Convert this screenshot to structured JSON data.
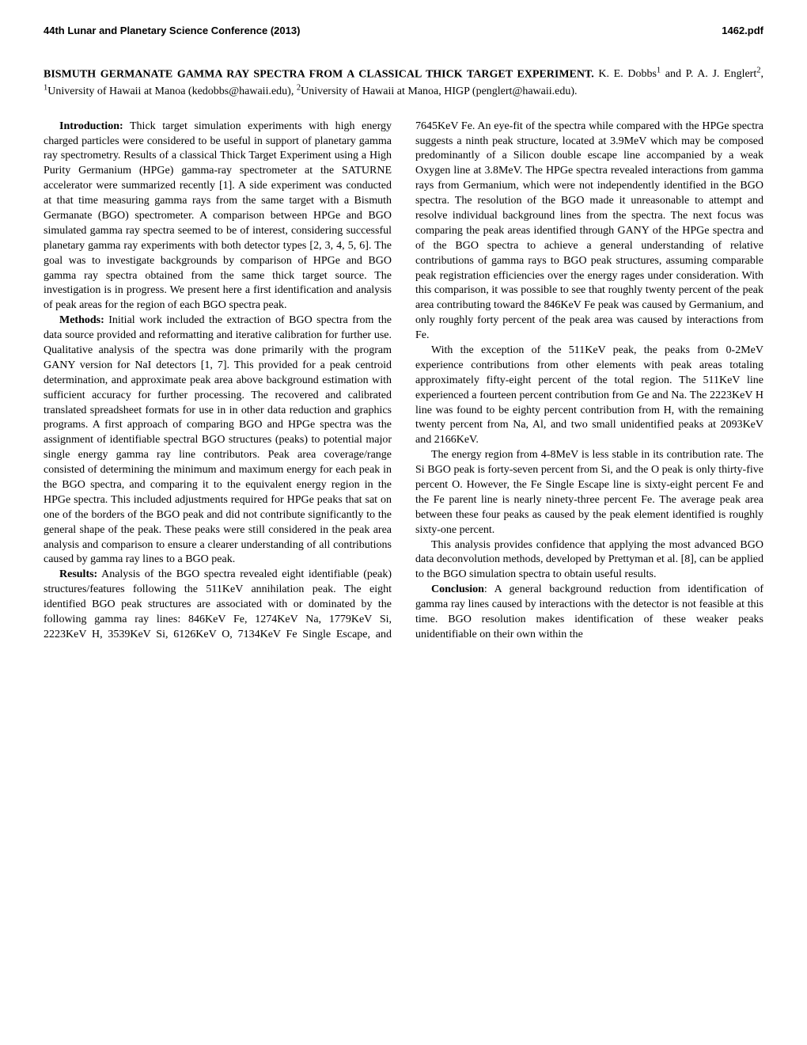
{
  "header": {
    "left": "44th Lunar and Planetary Science Conference (2013)",
    "right": "1462.pdf"
  },
  "title": {
    "main": "BISMUTH GERMANATE GAMMA RAY SPECTRA FROM A CLASSICAL THICK TARGET EXPERIMENT.",
    "authors_html": "  K. E. Dobbs<sup>1</sup> and P. A. J. Englert<sup>2</sup>, <sup>1</sup>University of Hawaii at Manoa (kedobbs@hawaii.edu), <sup>2</sup>University of Hawaii at Manoa, HIGP (penglert@hawaii.edu)."
  },
  "sections": {
    "intro_head": "Introduction:",
    "intro_body": "  Thick target simulation experiments with high energy charged particles were considered to be useful in support of planetary gamma ray spectrometry. Results of a classical Thick Target Experiment using a High Purity Germanium (HPGe) gamma-ray spectrometer at the SATURNE accelerator were summarized recently [1].  A side experiment was conducted at that time measuring gamma rays from the same target with a Bismuth Germanate (BGO) spectrometer.  A comparison between HPGe and BGO simulated gamma ray spectra seemed to be of interest, considering successful planetary gamma ray experiments with both detector types [2, 3, 4, 5, 6]. The goal was to investigate backgrounds by comparison of HPGe and BGO gamma ray spectra obtained from the same thick target source. The investigation is in progress. We present here a first identification and analysis of peak areas for the region of each BGO spectra peak.",
    "methods_head": "Methods:",
    "methods_body": "  Initial work included the extraction of BGO spectra from the data source provided and reformatting and iterative calibration for further use. Qualitative analysis of the spectra was done primarily with the program GANY version for NaI detectors [1, 7].  This provided for a peak centroid determination, and approximate peak area above background estimation with sufficient accuracy for further processing. The recovered and calibrated translated spreadsheet formats for use in in other data reduction and graphics programs. A first approach of comparing BGO and HPGe spectra was the assignment of identifiable spectral BGO structures (peaks) to potential major single energy gamma ray line contributors. Peak area coverage/range consisted of determining the minimum and maximum energy for each peak in the BGO spectra, and comparing it to the equivalent energy region in the HPGe spectra.  This included adjustments required for HPGe peaks that sat on one of the borders of the BGO peak and did not contribute significantly to the general shape of the peak.  These peaks were still considered in the peak area analysis and comparison to ensure a clearer understanding of all contributions caused by gamma ray lines to a BGO peak.",
    "results_head": "Results:",
    "results_body": "  Analysis of the BGO spectra revealed eight identifiable (peak) structures/features following the 511KeV annihilation peak. The eight identified BGO peak structures are associated with or dominated by the following gamma ray lines: 846KeV Fe, 1274KeV Na, 1779KeV Si, 2223KeV H, 3539KeV Si, 6126KeV O, 7134KeV Fe Single Escape, and 7645KeV Fe. An eye-fit of the spectra while compared with the HPGe spectra suggests a ninth peak structure, located at 3.9MeV which may be composed predominantly of a Silicon double escape line accompanied by a weak Oxygen line at 3.8MeV. The HPGe spectra revealed interactions from gamma rays from Germanium, which were not independently identified in the BGO spectra.  The resolution of the BGO made it unreasonable to attempt and resolve individual background lines from the spectra.  The next focus was comparing the peak areas identified through GANY of the HPGe spectra and of the BGO spectra to achieve a general understanding of relative contributions of gamma rays to BGO peak structures, assuming comparable peak registration efficiencies over the energy rages under consideration. With this comparison, it was possible to see that roughly twenty percent of the peak area contributing toward the 846KeV Fe peak was caused by Germanium, and only roughly forty percent of the peak area was caused by interactions from Fe.",
    "p2": "With the exception of the 511KeV peak, the peaks from 0-2MeV experience contributions from other elements with peak areas totaling approximately fifty-eight percent of the total region.  The 511KeV line experienced a fourteen percent contribution from Ge and Na.  The 2223KeV H line was found to be eighty percent contribution from H, with the remaining twenty percent from Na, Al, and two small unidentified peaks at 2093KeV and 2166KeV.",
    "p3": "The energy region from 4-8MeV is less stable in its contribution rate.  The Si BGO peak is forty-seven percent from Si, and the O peak is only thirty-five percent O.  However, the Fe Single Escape line is sixty-eight percent Fe and the Fe parent line is nearly ninety-three percent Fe.  The average peak area between these four peaks as caused by the peak element identified is roughly sixty-one percent.",
    "p4": "This analysis provides confidence that applying the most advanced BGO data deconvolution methods, developed by Prettyman et al. [8], can be applied to the BGO simulation spectra to obtain useful results.",
    "conclusion_head": "Conclusion",
    "conclusion_body": ": A general background reduction from identification of gamma ray lines caused by interactions with the detector is not feasible at this time.  BGO resolution makes identification of these weaker peaks unidentifiable on their own within the"
  }
}
